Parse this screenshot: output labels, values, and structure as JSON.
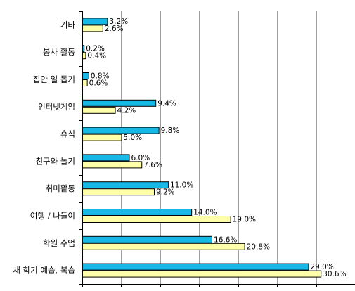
{
  "chart_data": {
    "type": "bar",
    "orientation": "horizontal",
    "categories": [
      "기타",
      "봉사 활동",
      "집안 일 돕기",
      "인터넷게임",
      "휴식",
      "친구와 놀기",
      "취미활동",
      "여행 / 나들이",
      "학원 수업",
      "새 학기 예습, 복습"
    ],
    "series": [
      {
        "values": [
          3.2,
          0.2,
          0.8,
          9.4,
          9.8,
          6.0,
          11.0,
          14.0,
          16.6,
          29.0
        ],
        "labels": [
          "3.2%",
          "0.2%",
          "0.8%",
          "9.4%",
          "9.8%",
          "6.0%",
          "11.0%",
          "14.0%",
          "16.6%",
          "29.0%"
        ],
        "color": "#17b7e6"
      },
      {
        "values": [
          2.6,
          0.4,
          0.6,
          4.2,
          5.0,
          7.6,
          9.2,
          19.0,
          20.8,
          30.6
        ],
        "labels": [
          "2.6%",
          "0.4%",
          "0.6%",
          "4.2%",
          "5.0%",
          "7.6%",
          "9.2%",
          "19.0%",
          "20.8%",
          "30.6%"
        ],
        "color": "#ffffaa"
      }
    ],
    "xlim": [
      0,
      35
    ],
    "gridlines": true,
    "legend": "none"
  }
}
